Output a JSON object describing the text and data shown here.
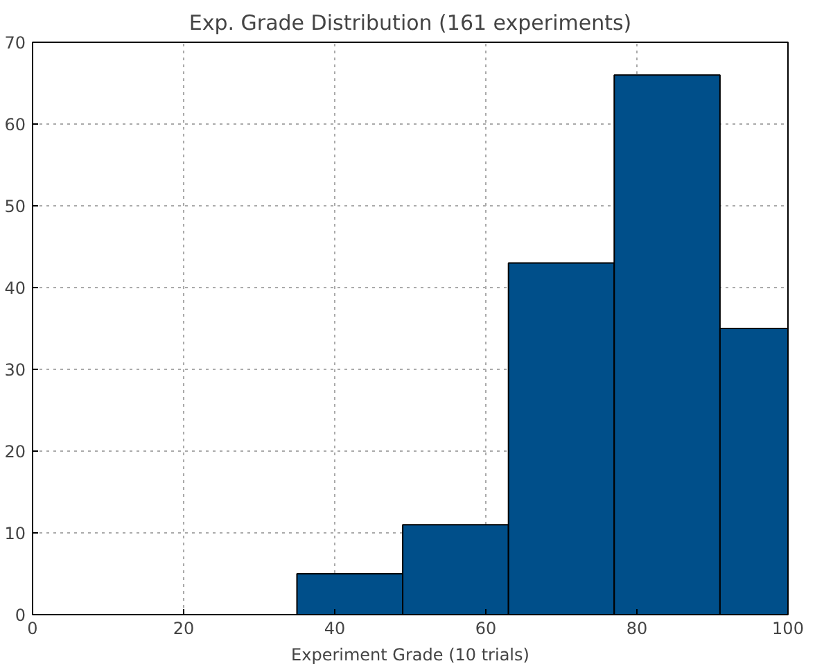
{
  "chart_data": {
    "type": "histogram",
    "title": "Exp. Grade Distribution (161 experiments)",
    "xlabel": "Experiment Grade (10 trials)",
    "bins": [
      35,
      49,
      63,
      77,
      91,
      100
    ],
    "values": [
      5,
      11,
      43,
      66,
      35
    ],
    "color": "#004f8a",
    "xlim": [
      0,
      100
    ],
    "xticks": [
      0,
      20,
      40,
      60,
      80,
      100
    ],
    "ylim": [
      0,
      70
    ],
    "yticks": [
      0,
      10,
      20,
      30,
      40,
      50,
      60,
      70
    ],
    "grid": true
  }
}
